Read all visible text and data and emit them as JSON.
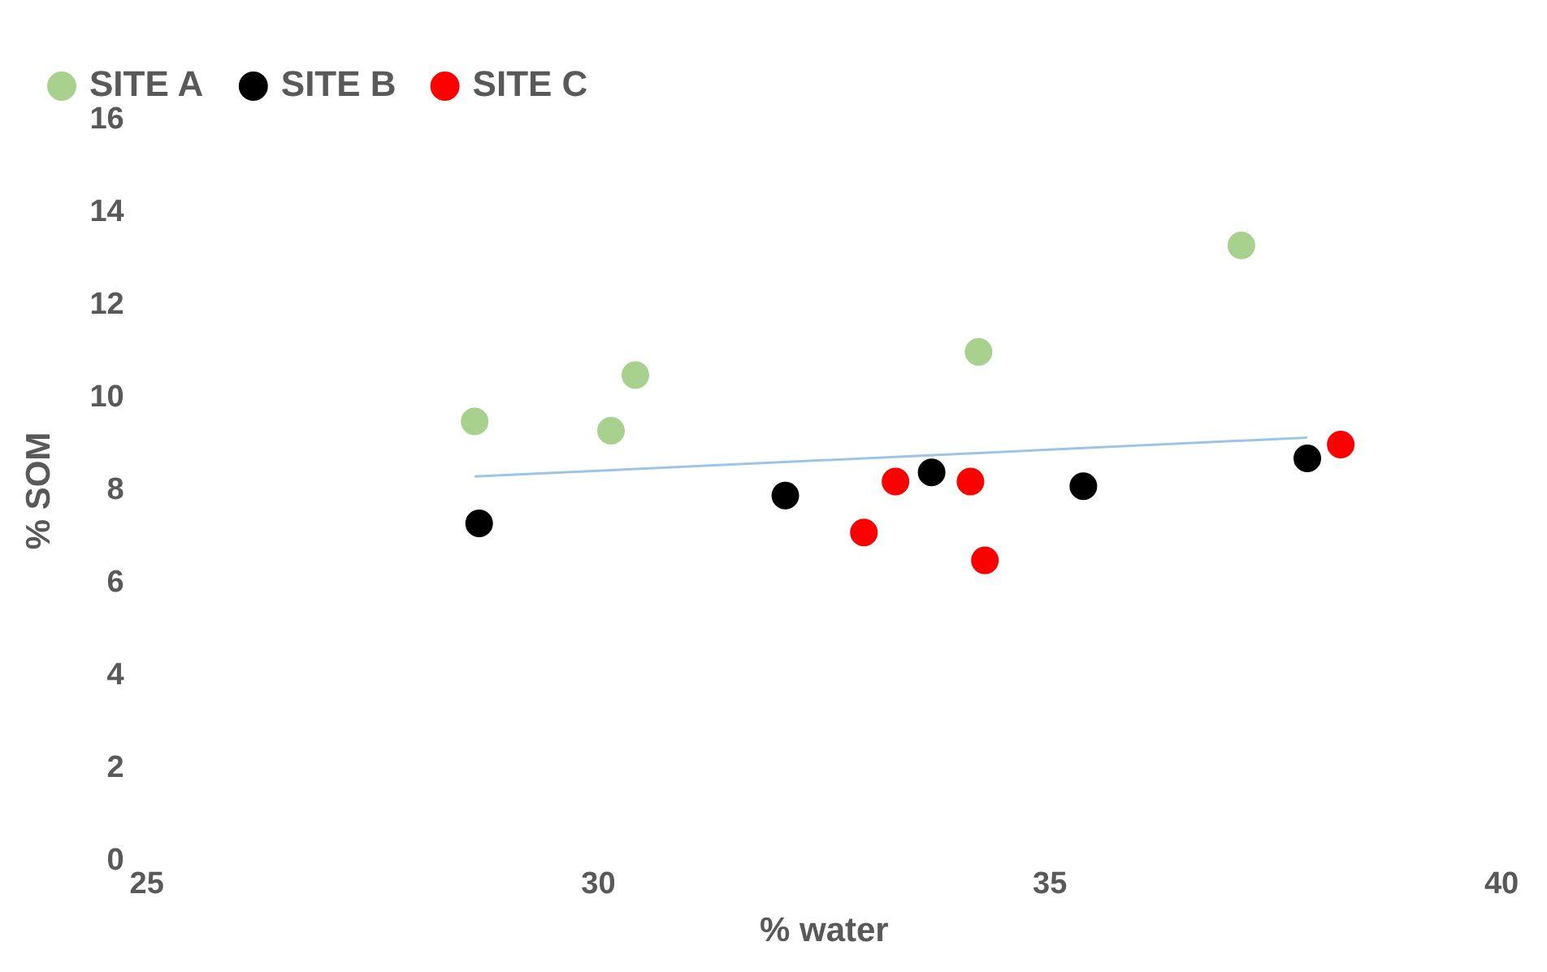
{
  "chart_data": {
    "type": "scatter",
    "xlabel": "% water",
    "ylabel": "% SOM",
    "xlim": [
      25,
      40
    ],
    "xticks": [
      25,
      30,
      35,
      40
    ],
    "ylim": [
      0,
      16
    ],
    "yticks": [
      0,
      2,
      4,
      6,
      8,
      10,
      12,
      14,
      16
    ],
    "grid": false,
    "legend": "top left",
    "series": [
      {
        "name": "SITE A",
        "marker": "circle",
        "color": "#a9d18e",
        "x": [
          28.63,
          30.14,
          30.41,
          34.21,
          37.12
        ],
        "values": [
          9.5,
          9.3,
          10.5,
          11.0,
          13.3
        ]
      },
      {
        "name": "SITE B",
        "marker": "circle",
        "color": "#000000",
        "x": [
          28.68,
          32.07,
          33.69,
          35.37,
          37.85
        ],
        "values": [
          7.3,
          7.9,
          8.4,
          8.1,
          8.7
        ]
      },
      {
        "name": "SITE C",
        "marker": "circle",
        "color": "#ff0000",
        "x": [
          32.94,
          33.29,
          34.12,
          34.28,
          38.22
        ],
        "values": [
          7.1,
          8.2,
          8.2,
          6.5,
          9.0
        ]
      },
      {
        "type": "line",
        "marker": "none",
        "color": "#9dc3e6",
        "x": [
          28.63,
          37.85
        ],
        "values": [
          8.31,
          9.15
        ]
      }
    ]
  }
}
